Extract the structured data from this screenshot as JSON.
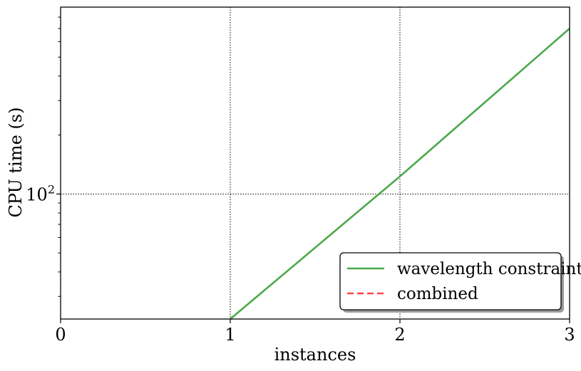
{
  "chart_data": {
    "type": "line",
    "xlabel": "instances",
    "ylabel": "CPU time (s)",
    "xlim": [
      0,
      3
    ],
    "ylim": [
      23,
      900
    ],
    "yscale": "log",
    "grid": true,
    "x_ticks": [
      0,
      1,
      2,
      3
    ],
    "y_ticks": [
      {
        "base": "10",
        "exp": "2",
        "value": 100
      }
    ],
    "legend_position": "lower right",
    "series": [
      {
        "name": "wavelength constraint",
        "color": "#4ba94b",
        "style": "solid",
        "x": [
          1,
          2,
          3
        ],
        "y": [
          23,
          123,
          700
        ]
      },
      {
        "name": "combined",
        "color": "#ff4444",
        "style": "dashed",
        "x": [],
        "y": []
      }
    ]
  }
}
